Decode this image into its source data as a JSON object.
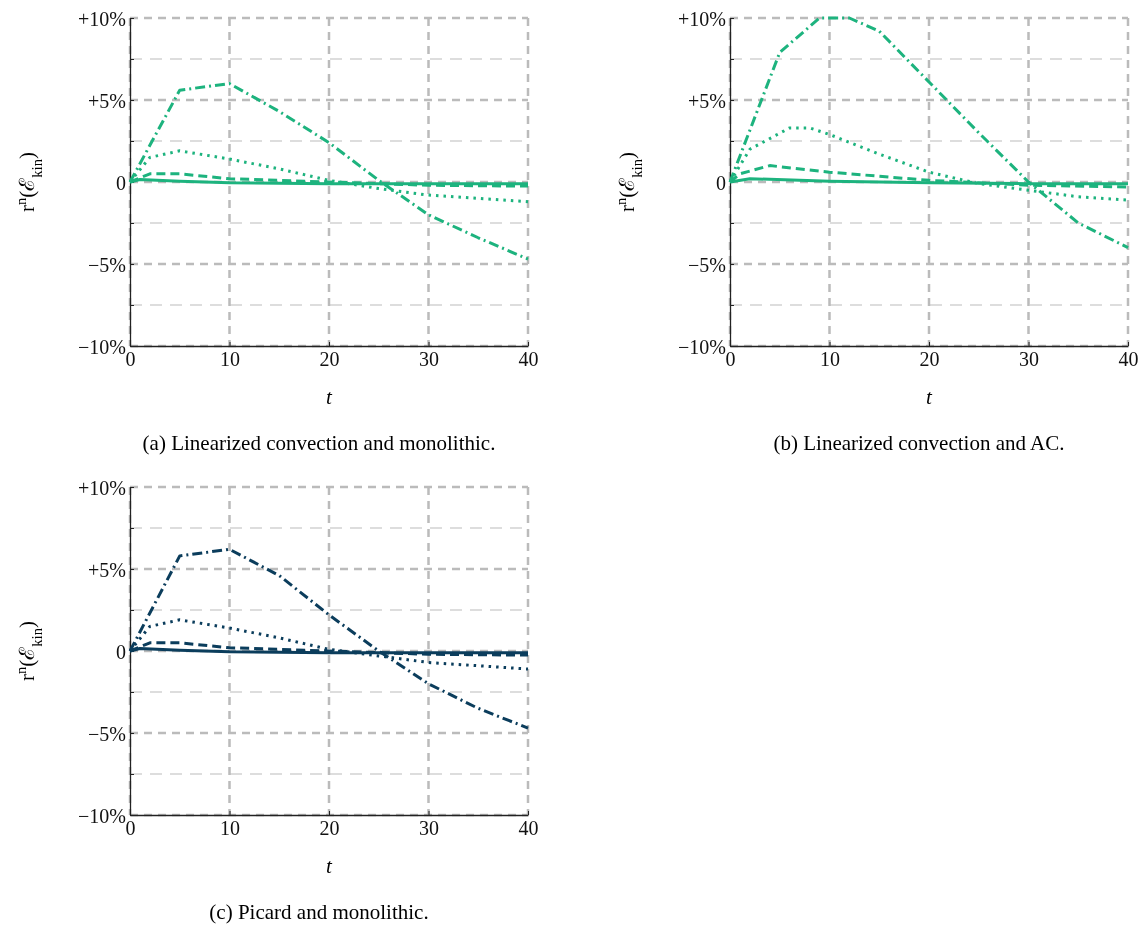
{
  "chart_data": [
    {
      "type": "line",
      "title": "(a) Linearized convection and monolithic.",
      "xlabel": "t",
      "ylabel": "r$^{n}$(ℰ$_{kin}$)",
      "xlim": [
        0,
        40
      ],
      "xticks": [
        0,
        10,
        20,
        30,
        40
      ],
      "ylim": [
        -10,
        10
      ],
      "yticks": [
        {
          "value": -10,
          "label": "−10%"
        },
        {
          "value": -7.5,
          "label": null
        },
        {
          "value": -5,
          "label": "−5%"
        },
        {
          "value": -2.5,
          "label": null
        },
        {
          "value": 0,
          "label": "0"
        },
        {
          "value": 2.5,
          "label": null
        },
        {
          "value": 5,
          "label": "+5%"
        },
        {
          "value": 7.5,
          "label": null
        },
        {
          "value": 10,
          "label": "+10%"
        }
      ],
      "grid": true,
      "marker": "none",
      "series": [
        {
          "color": "#1db37e",
          "line_style": "solid",
          "x": [
            0,
            1,
            5,
            10,
            20,
            30,
            40
          ],
          "values": [
            0,
            0.15,
            0.05,
            -0.05,
            -0.1,
            -0.1,
            -0.1
          ]
        },
        {
          "color": "#1db37e",
          "line_style": "dashed",
          "x": [
            0,
            2,
            5,
            10,
            20,
            30,
            40
          ],
          "values": [
            0,
            0.5,
            0.5,
            0.2,
            0,
            -0.2,
            -0.25
          ]
        },
        {
          "color": "#1db37e",
          "line_style": "dotted",
          "x": [
            0,
            2,
            5,
            10,
            15,
            20,
            25,
            30,
            35,
            40
          ],
          "values": [
            0,
            1.5,
            1.9,
            1.4,
            0.8,
            0.1,
            -0.4,
            -0.8,
            -1.0,
            -1.2
          ]
        },
        {
          "color": "#1db37e",
          "line_style": "dashdot",
          "x": [
            0,
            5,
            10,
            15,
            20,
            25,
            30,
            35,
            40
          ],
          "values": [
            0,
            5.6,
            6.0,
            4.3,
            2.4,
            0.1,
            -2.0,
            -3.4,
            -4.7
          ]
        }
      ]
    },
    {
      "type": "line",
      "title": "(b) Linearized convection and AC.",
      "xlabel": "t",
      "ylabel": "r$^{n}$(ℰ$_{kin}$)",
      "xlim": [
        0,
        40
      ],
      "xticks": [
        0,
        10,
        20,
        30,
        40
      ],
      "ylim": [
        -10,
        10
      ],
      "yticks": [
        {
          "value": -10,
          "label": "−10%"
        },
        {
          "value": -7.5,
          "label": null
        },
        {
          "value": -5,
          "label": "−5%"
        },
        {
          "value": -2.5,
          "label": null
        },
        {
          "value": 0,
          "label": "0"
        },
        {
          "value": 2.5,
          "label": null
        },
        {
          "value": 5,
          "label": "+5%"
        },
        {
          "value": 7.5,
          "label": null
        },
        {
          "value": 10,
          "label": "+10%"
        }
      ],
      "grid": true,
      "marker": "none",
      "series": [
        {
          "color": "#1db37e",
          "line_style": "solid",
          "x": [
            0,
            2,
            10,
            20,
            30,
            40
          ],
          "values": [
            0,
            0.2,
            0.05,
            -0.05,
            -0.1,
            -0.1
          ]
        },
        {
          "color": "#1db37e",
          "line_style": "dashed",
          "x": [
            0,
            1,
            4,
            10,
            20,
            30,
            40
          ],
          "values": [
            0,
            0.5,
            1.0,
            0.6,
            0.1,
            -0.2,
            -0.3
          ]
        },
        {
          "color": "#1db37e",
          "line_style": "dotted",
          "x": [
            0,
            2,
            6,
            8,
            10,
            15,
            20,
            25,
            30,
            35,
            40
          ],
          "values": [
            0,
            2.0,
            3.3,
            3.3,
            2.9,
            1.7,
            0.6,
            -0.1,
            -0.5,
            -0.9,
            -1.1
          ]
        },
        {
          "color": "#1db37e",
          "line_style": "dashdot",
          "x": [
            0,
            5,
            9,
            12,
            15,
            20,
            25,
            30,
            35,
            40
          ],
          "values": [
            0,
            7.9,
            10,
            10,
            9.2,
            6.1,
            3.0,
            0,
            -2.5,
            -4.0
          ]
        }
      ]
    },
    {
      "type": "line",
      "title": "(c) Picard and monolithic.",
      "xlabel": "t",
      "ylabel": "r$^{n}$(ℰ$_{kin}$)",
      "xlim": [
        0,
        40
      ],
      "xticks": [
        0,
        10,
        20,
        30,
        40
      ],
      "ylim": [
        -10,
        10
      ],
      "yticks": [
        {
          "value": -10,
          "label": "−10%"
        },
        {
          "value": -7.5,
          "label": null
        },
        {
          "value": -5,
          "label": "−5%"
        },
        {
          "value": -2.5,
          "label": null
        },
        {
          "value": 0,
          "label": "0"
        },
        {
          "value": 2.5,
          "label": null
        },
        {
          "value": 5,
          "label": "+5%"
        },
        {
          "value": 7.5,
          "label": null
        },
        {
          "value": 10,
          "label": "+10%"
        }
      ],
      "grid": true,
      "marker": "none",
      "series": [
        {
          "color": "#0b3d5c",
          "line_style": "solid",
          "x": [
            0,
            1,
            5,
            10,
            20,
            30,
            40
          ],
          "values": [
            0,
            0.15,
            0.05,
            -0.05,
            -0.1,
            -0.1,
            -0.1
          ]
        },
        {
          "color": "#0b3d5c",
          "line_style": "dashed",
          "x": [
            0,
            2,
            5,
            10,
            20,
            30,
            40
          ],
          "values": [
            0,
            0.5,
            0.5,
            0.2,
            0,
            -0.2,
            -0.25
          ]
        },
        {
          "color": "#0b3d5c",
          "line_style": "dotted",
          "x": [
            0,
            2,
            5,
            10,
            15,
            20,
            25,
            30,
            35,
            40
          ],
          "values": [
            0,
            1.5,
            1.9,
            1.4,
            0.8,
            0.1,
            -0.3,
            -0.7,
            -0.9,
            -1.1
          ]
        },
        {
          "color": "#0b3d5c",
          "line_style": "dashdot",
          "x": [
            0,
            5,
            10,
            15,
            20,
            25,
            30,
            35,
            40
          ],
          "values": [
            0,
            5.8,
            6.2,
            4.6,
            2.2,
            0,
            -2.0,
            -3.5,
            -4.7
          ]
        }
      ]
    }
  ]
}
